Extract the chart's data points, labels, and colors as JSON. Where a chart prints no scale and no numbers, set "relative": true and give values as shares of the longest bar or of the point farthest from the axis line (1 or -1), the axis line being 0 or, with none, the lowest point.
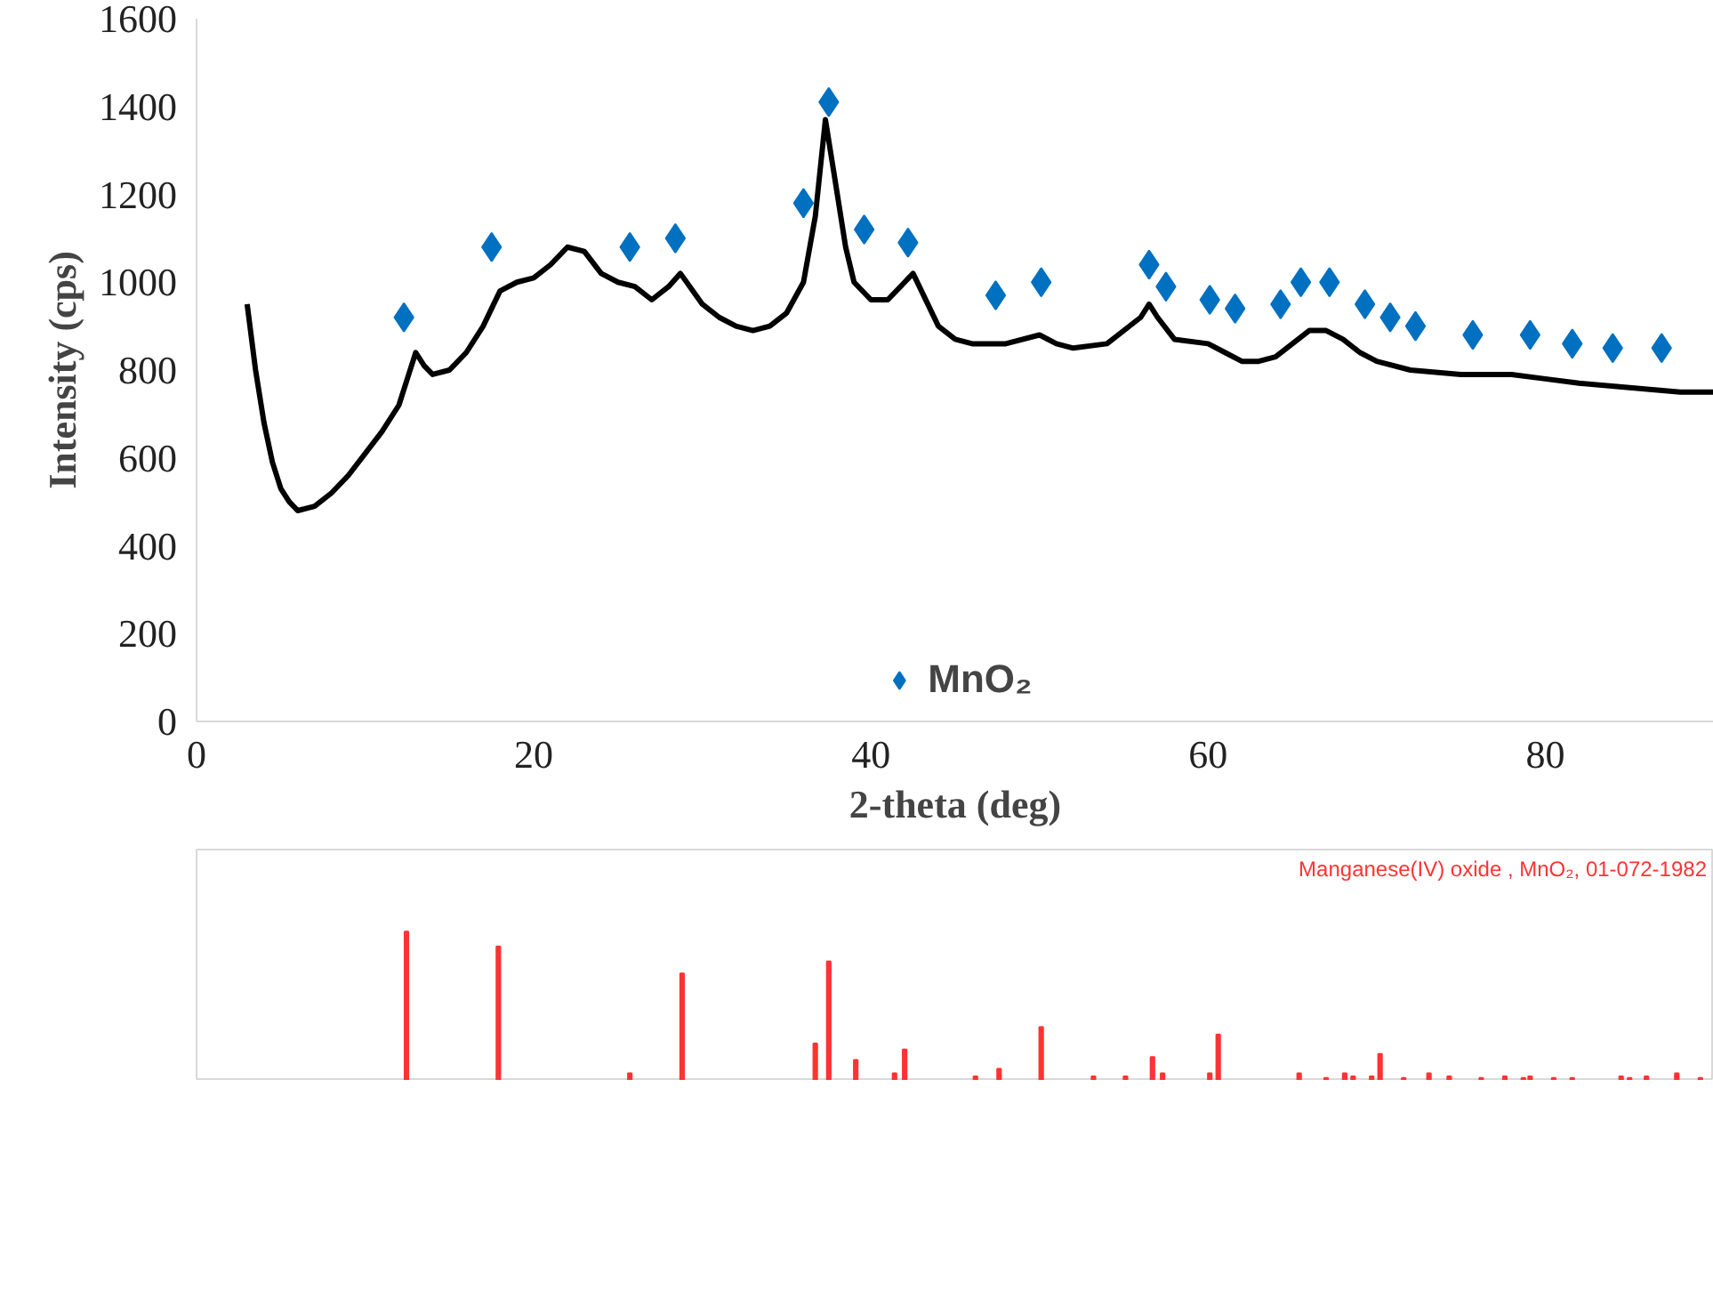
{
  "chart_data": [
    {
      "type": "line",
      "xlabel": "2-theta (deg)",
      "ylabel": "Intensity (cps)",
      "xlim": [
        0,
        90
      ],
      "xticks": [
        0,
        20,
        40,
        60,
        80
      ],
      "ylim": [
        0,
        1600
      ],
      "yticks": [
        0,
        200,
        400,
        600,
        800,
        1000,
        1200,
        1400,
        1600
      ],
      "grid": false,
      "legend": "bottom",
      "series": [
        {
          "type": "line",
          "color": "#000000",
          "line_style": "solid",
          "x": [
            3,
            3.5,
            4,
            4.5,
            5,
            5.5,
            6,
            7,
            8,
            9,
            10,
            11,
            12,
            12.5,
            13,
            13.5,
            14,
            15,
            16,
            17,
            18,
            19,
            20,
            21,
            22,
            23,
            24,
            25,
            26,
            27,
            28,
            28.7,
            30,
            31,
            32,
            33,
            34,
            35,
            36,
            36.7,
            37.3,
            37.8,
            38.5,
            39,
            40,
            41,
            42,
            42.5,
            43,
            44,
            45,
            46,
            47,
            48,
            50,
            51,
            52,
            54,
            56,
            56.5,
            57,
            58,
            60,
            61,
            62,
            63,
            64,
            65,
            66,
            67,
            68,
            69,
            70,
            72,
            75,
            78,
            80,
            82,
            85,
            88,
            90
          ],
          "values": [
            950,
            800,
            680,
            590,
            530,
            500,
            480,
            490,
            520,
            560,
            610,
            660,
            720,
            780,
            840,
            810,
            790,
            800,
            840,
            900,
            980,
            1000,
            1010,
            1040,
            1080,
            1070,
            1020,
            1000,
            990,
            960,
            990,
            1020,
            950,
            920,
            900,
            890,
            900,
            930,
            1000,
            1150,
            1370,
            1250,
            1080,
            1000,
            960,
            960,
            1000,
            1020,
            980,
            900,
            870,
            860,
            860,
            860,
            880,
            860,
            850,
            860,
            920,
            950,
            920,
            870,
            860,
            840,
            820,
            820,
            830,
            860,
            890,
            890,
            870,
            840,
            820,
            800,
            790,
            790,
            780,
            770,
            760,
            750,
            750
          ]
        },
        {
          "type": "scatter",
          "name": "MnO₂",
          "color": "#0070c0",
          "marker": "diamond",
          "x": [
            12.3,
            17.5,
            25.7,
            28.4,
            36.0,
            37.5,
            39.6,
            42.2,
            47.4,
            50.1,
            56.5,
            57.5,
            60.1,
            61.6,
            64.3,
            65.5,
            67.2,
            69.3,
            70.8,
            72.3,
            75.7,
            79.1,
            81.6,
            84.0,
            86.9
          ],
          "values": [
            920,
            1080,
            1080,
            1100,
            1180,
            1410,
            1120,
            1090,
            970,
            1000,
            1040,
            990,
            960,
            940,
            950,
            1000,
            1000,
            950,
            920,
            900,
            880,
            880,
            860,
            850,
            850
          ]
        }
      ]
    },
    {
      "type": "bar",
      "relative": true,
      "tick_labels": false,
      "xlim": [
        0,
        90
      ],
      "color": "#ff3333",
      "annotations": [
        "Manganese(IV) oxide , MnO₂, 01-072-1982"
      ],
      "x": [
        12.45,
        17.9,
        25.7,
        28.8,
        36.7,
        37.5,
        39.1,
        41.4,
        42.0,
        46.2,
        47.6,
        50.1,
        53.2,
        55.1,
        56.7,
        57.3,
        60.1,
        60.6,
        65.4,
        67.0,
        68.1,
        68.6,
        69.7,
        70.2,
        71.6,
        73.1,
        74.3,
        76.2,
        77.6,
        78.7,
        79.1,
        80.5,
        81.6,
        84.5,
        85.0,
        86.0,
        87.8,
        89.2
      ],
      "values": [
        1.0,
        0.9,
        0.05,
        0.72,
        0.25,
        0.8,
        0.14,
        0.05,
        0.21,
        0.03,
        0.08,
        0.36,
        0.03,
        0.03,
        0.16,
        0.05,
        0.05,
        0.31,
        0.05,
        0.02,
        0.05,
        0.03,
        0.03,
        0.18,
        0.02,
        0.05,
        0.03,
        0.02,
        0.03,
        0.02,
        0.03,
        0.02,
        0.02,
        0.03,
        0.02,
        0.03,
        0.05,
        0.02
      ]
    }
  ]
}
